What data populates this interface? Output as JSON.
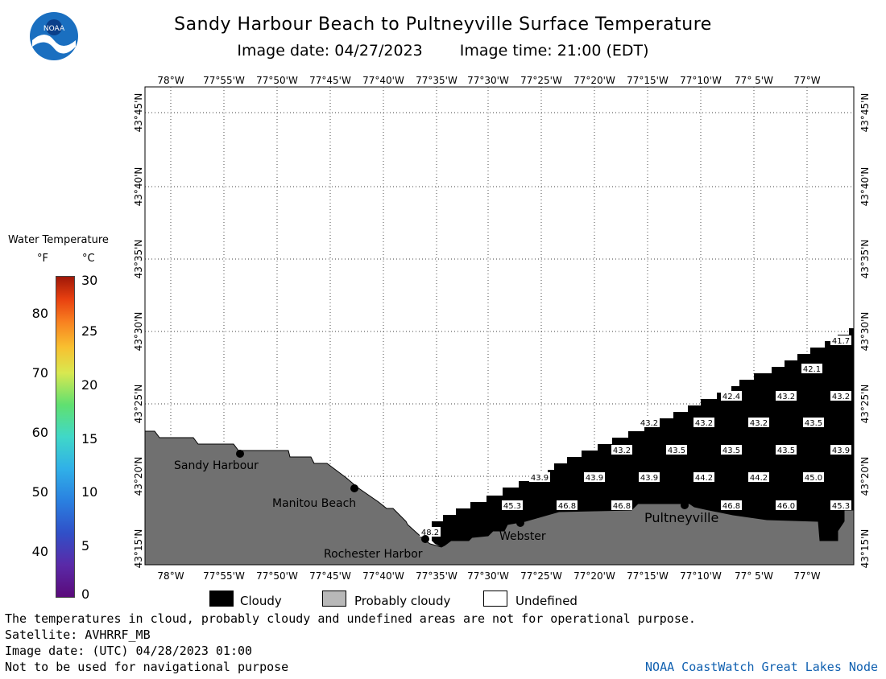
{
  "title": "Sandy Harbour Beach to Pultneyville Surface Temperature",
  "image_date_label": "Image date: 04/27/2023",
  "image_time_label": "Image time: 21:00 (EDT)",
  "logo_text": "NOAA",
  "legend": {
    "title": "Water Temperature",
    "unit_f": "°F",
    "unit_c": "°C",
    "f_ticks": [
      "80",
      "70",
      "60",
      "50",
      "40"
    ],
    "c_ticks": [
      "30",
      "25",
      "20",
      "15",
      "10",
      "5",
      "0"
    ],
    "range_c": [
      0,
      30
    ]
  },
  "map": {
    "lon_labels": [
      "78°W",
      "77°55'W",
      "77°50'W",
      "77°45'W",
      "77°40'W",
      "77°35'W",
      "77°30'W",
      "77°25'W",
      "77°20'W",
      "77°15'W",
      "77°10'W",
      "77° 5'W",
      "77°W"
    ],
    "lat_labels": [
      "43°45'N",
      "43°40'N",
      "43°35'N",
      "43°30'N",
      "43°25'N",
      "43°20'N",
      "43°15'N"
    ],
    "places": [
      "Sandy Harbour",
      "Manitou Beach",
      "Rochester Harbor",
      "Webster",
      "Pultneyville"
    ],
    "colors": {
      "land": "#707070",
      "cloud": "#000000",
      "water": "#ffffff",
      "grid": "#000000"
    },
    "temperature_labels_f": [
      "41.7",
      "42.1",
      "42.4",
      "43.2",
      "43.2",
      "43.2",
      "43.2",
      "43.2",
      "43.5",
      "43.2",
      "43.5",
      "43.5",
      "43.5",
      "43.9",
      "43.9",
      "43.9",
      "43.9",
      "44.2",
      "44.2",
      "45.0",
      "45.3",
      "46.8",
      "46.8",
      "46.8",
      "46.0",
      "45.3",
      "48.2"
    ]
  },
  "key": {
    "cloudy": "Cloudy",
    "probably_cloudy": "Probably cloudy",
    "undefined": "Undefined"
  },
  "notes": {
    "line1": "The temperatures in cloud, probably cloudy and undefined areas are not for operational purpose.",
    "line2": "Satellite: AVHRRF_MB",
    "line3": "Image date: (UTC) 04/28/2023  01:00",
    "line4": "Not to be used for navigational purpose"
  },
  "credit": "NOAA CoastWatch Great Lakes Node"
}
